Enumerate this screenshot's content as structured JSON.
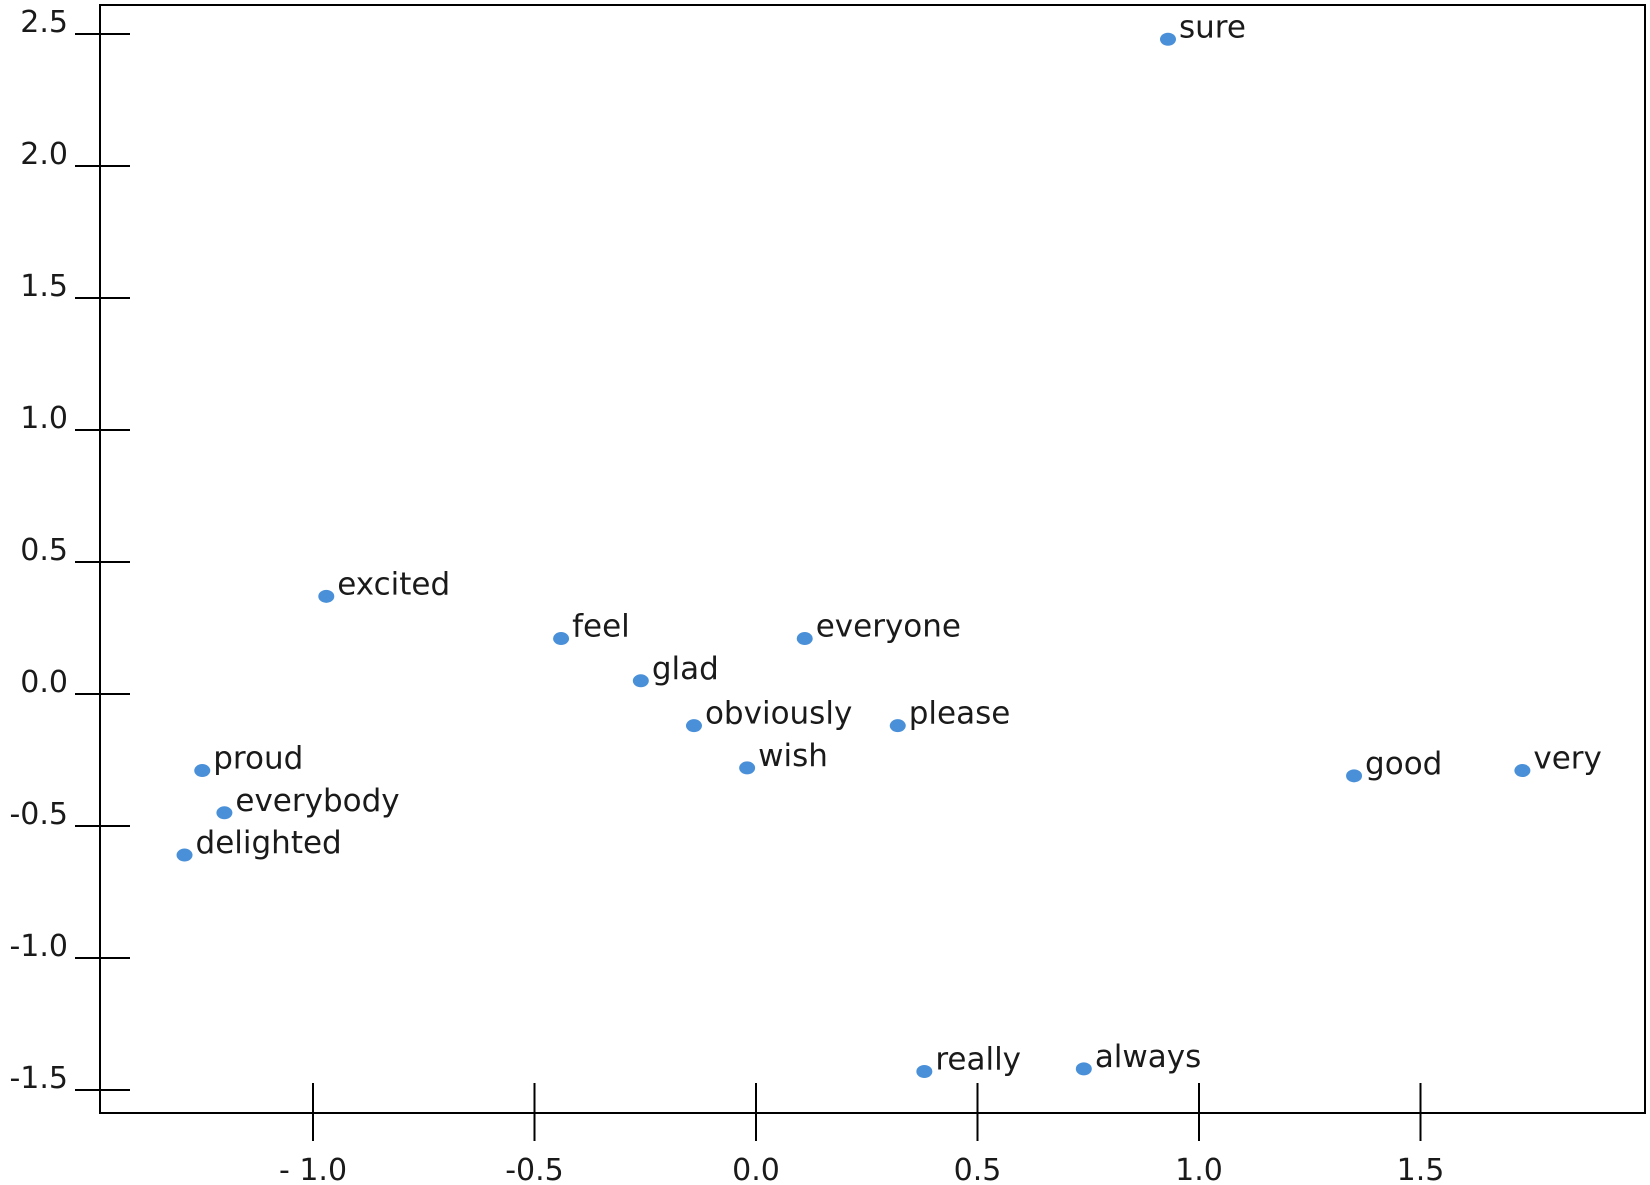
{
  "chart_data": {
    "type": "scatter",
    "title": "",
    "xlabel": "",
    "ylabel": "",
    "xlim": [
      -1.5,
      2.0
    ],
    "ylim": [
      -1.55,
      2.6
    ],
    "grid": false,
    "x_ticks": [
      {
        "value": -1.0,
        "label": "- 1.0"
      },
      {
        "value": -0.5,
        "label": "-0.5"
      },
      {
        "value": 0.0,
        "label": "0.0"
      },
      {
        "value": 0.5,
        "label": "0.5"
      },
      {
        "value": 1.0,
        "label": "1.0"
      },
      {
        "value": 1.5,
        "label": "1.5"
      }
    ],
    "y_ticks": [
      {
        "value": 2.5,
        "label": "2.5"
      },
      {
        "value": 2.0,
        "label": "2.0"
      },
      {
        "value": 1.5,
        "label": "1.5"
      },
      {
        "value": 1.0,
        "label": "1.0"
      },
      {
        "value": 0.5,
        "label": "0.5"
      },
      {
        "value": 0.0,
        "label": "0.0"
      },
      {
        "value": -0.5,
        "label": "-0.5"
      },
      {
        "value": -1.0,
        "label": "-1.0"
      },
      {
        "value": -1.5,
        "label": "-1.5"
      }
    ],
    "point_color": "#4a90d9",
    "points": [
      {
        "label": "sure",
        "x": 0.93,
        "y": 2.48
      },
      {
        "label": "excited",
        "x": -0.97,
        "y": 0.37
      },
      {
        "label": "feel",
        "x": -0.44,
        "y": 0.21
      },
      {
        "label": "everyone",
        "x": 0.11,
        "y": 0.21
      },
      {
        "label": "glad",
        "x": -0.26,
        "y": 0.05
      },
      {
        "label": "obviously",
        "x": -0.14,
        "y": -0.12
      },
      {
        "label": "please",
        "x": 0.32,
        "y": -0.12
      },
      {
        "label": "wish",
        "x": -0.02,
        "y": -0.28
      },
      {
        "label": "proud",
        "x": -1.25,
        "y": -0.29
      },
      {
        "label": "everybody",
        "x": -1.2,
        "y": -0.45
      },
      {
        "label": "delighted",
        "x": -1.29,
        "y": -0.61
      },
      {
        "label": "good",
        "x": 1.35,
        "y": -0.31
      },
      {
        "label": "very",
        "x": 1.73,
        "y": -0.29
      },
      {
        "label": "really",
        "x": 0.38,
        "y": -1.43
      },
      {
        "label": "always",
        "x": 0.74,
        "y": -1.42
      }
    ]
  }
}
